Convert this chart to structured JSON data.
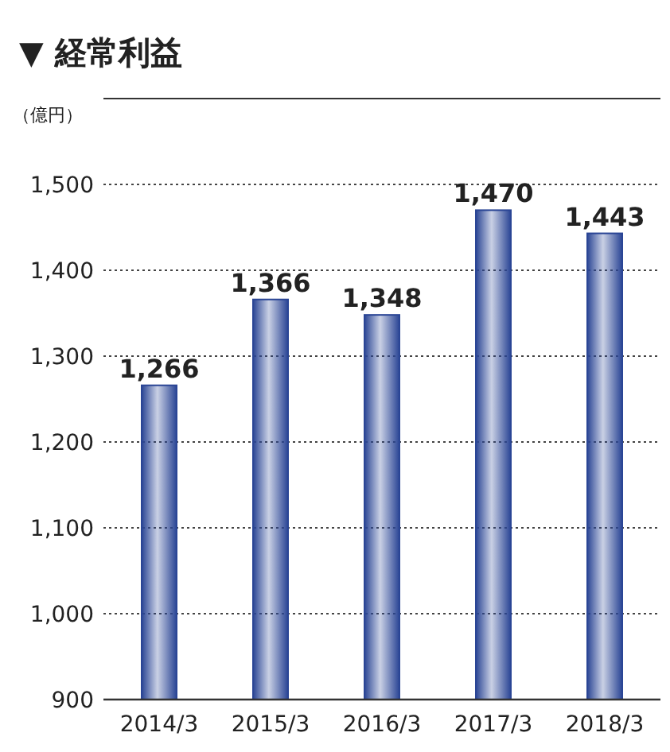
{
  "chart_data": {
    "type": "bar",
    "title": "▼ 経常利益",
    "ylabel": "（億円）",
    "categories": [
      "2014/3",
      "2015/3",
      "2016/3",
      "2017/3",
      "2018/3"
    ],
    "values": [
      1266,
      1366,
      1348,
      1470,
      1443
    ],
    "value_labels": [
      "1,266",
      "1,366",
      "1,348",
      "1,470",
      "1,443"
    ],
    "color": "#2a4595",
    "ylim": [
      900,
      1600
    ],
    "yticks": [
      900,
      {
        "value": 1000,
        "label": "1,000"
      },
      {
        "value": 1100,
        "label": "1,100"
      },
      {
        "value": 1200,
        "label": "1,200"
      },
      {
        "value": 1300,
        "label": "1,300"
      },
      {
        "value": 1400,
        "label": "1,400"
      },
      {
        "value": 1500,
        "label": "1,500"
      }
    ],
    "grid": "y"
  }
}
